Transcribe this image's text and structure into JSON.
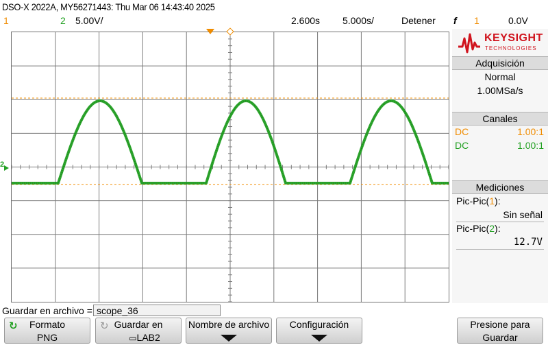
{
  "header": {
    "title": "DSO-X 2022A, MY56271443: Thu Mar 06 14:43:40 2025",
    "ch1_num": "1",
    "ch2_num": "2",
    "ch2_scale": "5.00V/",
    "time_offset": "2.600s",
    "time_scale": "5.000s/",
    "run_state": "Detener",
    "trigger_symbol": "f",
    "trigger_source": "1",
    "trigger_level": "0.0V"
  },
  "brand": {
    "name": "KEYSIGHT",
    "sub": "TECHNOLOGIES",
    "color": "#d0141e"
  },
  "panel": {
    "acq_title": "Adquisición",
    "acq_mode": "Normal",
    "acq_rate": "1.00MSa/s",
    "channels_title": "Canales",
    "ch1_coupling": "DC",
    "ch1_probe": "1.00:1",
    "ch2_coupling": "DC",
    "ch2_probe": "1.00:1",
    "meas_title": "Mediciones",
    "meas1_label": "Pic-Pic(",
    "meas1_ch": "1",
    "meas1_close": "):",
    "meas1_value": "Sin señal",
    "meas2_label": "Pic-Pic(",
    "meas2_ch": "2",
    "meas2_close": "):",
    "meas2_value": "12.7V"
  },
  "bottom": {
    "save_label": "Guardar en archivo =",
    "filename": "scope_36",
    "key1_l1": "Formato",
    "key1_l2": "PNG",
    "key2_l1": "Guardar en",
    "key2_l2": "LAB2",
    "key3_l1": "Nombre de archivo",
    "key4_l1": "Configuración",
    "key5_l1": "Presione para",
    "key5_l2": "Guardar"
  },
  "colors": {
    "ch1": "#f08c00",
    "ch2": "#22a022",
    "grid": "#7a7a7a"
  },
  "trace": {
    "channel": "2",
    "shape": "half-wave rectified sine",
    "peak_to_peak": "12.7V",
    "cycles_visible": 3
  }
}
